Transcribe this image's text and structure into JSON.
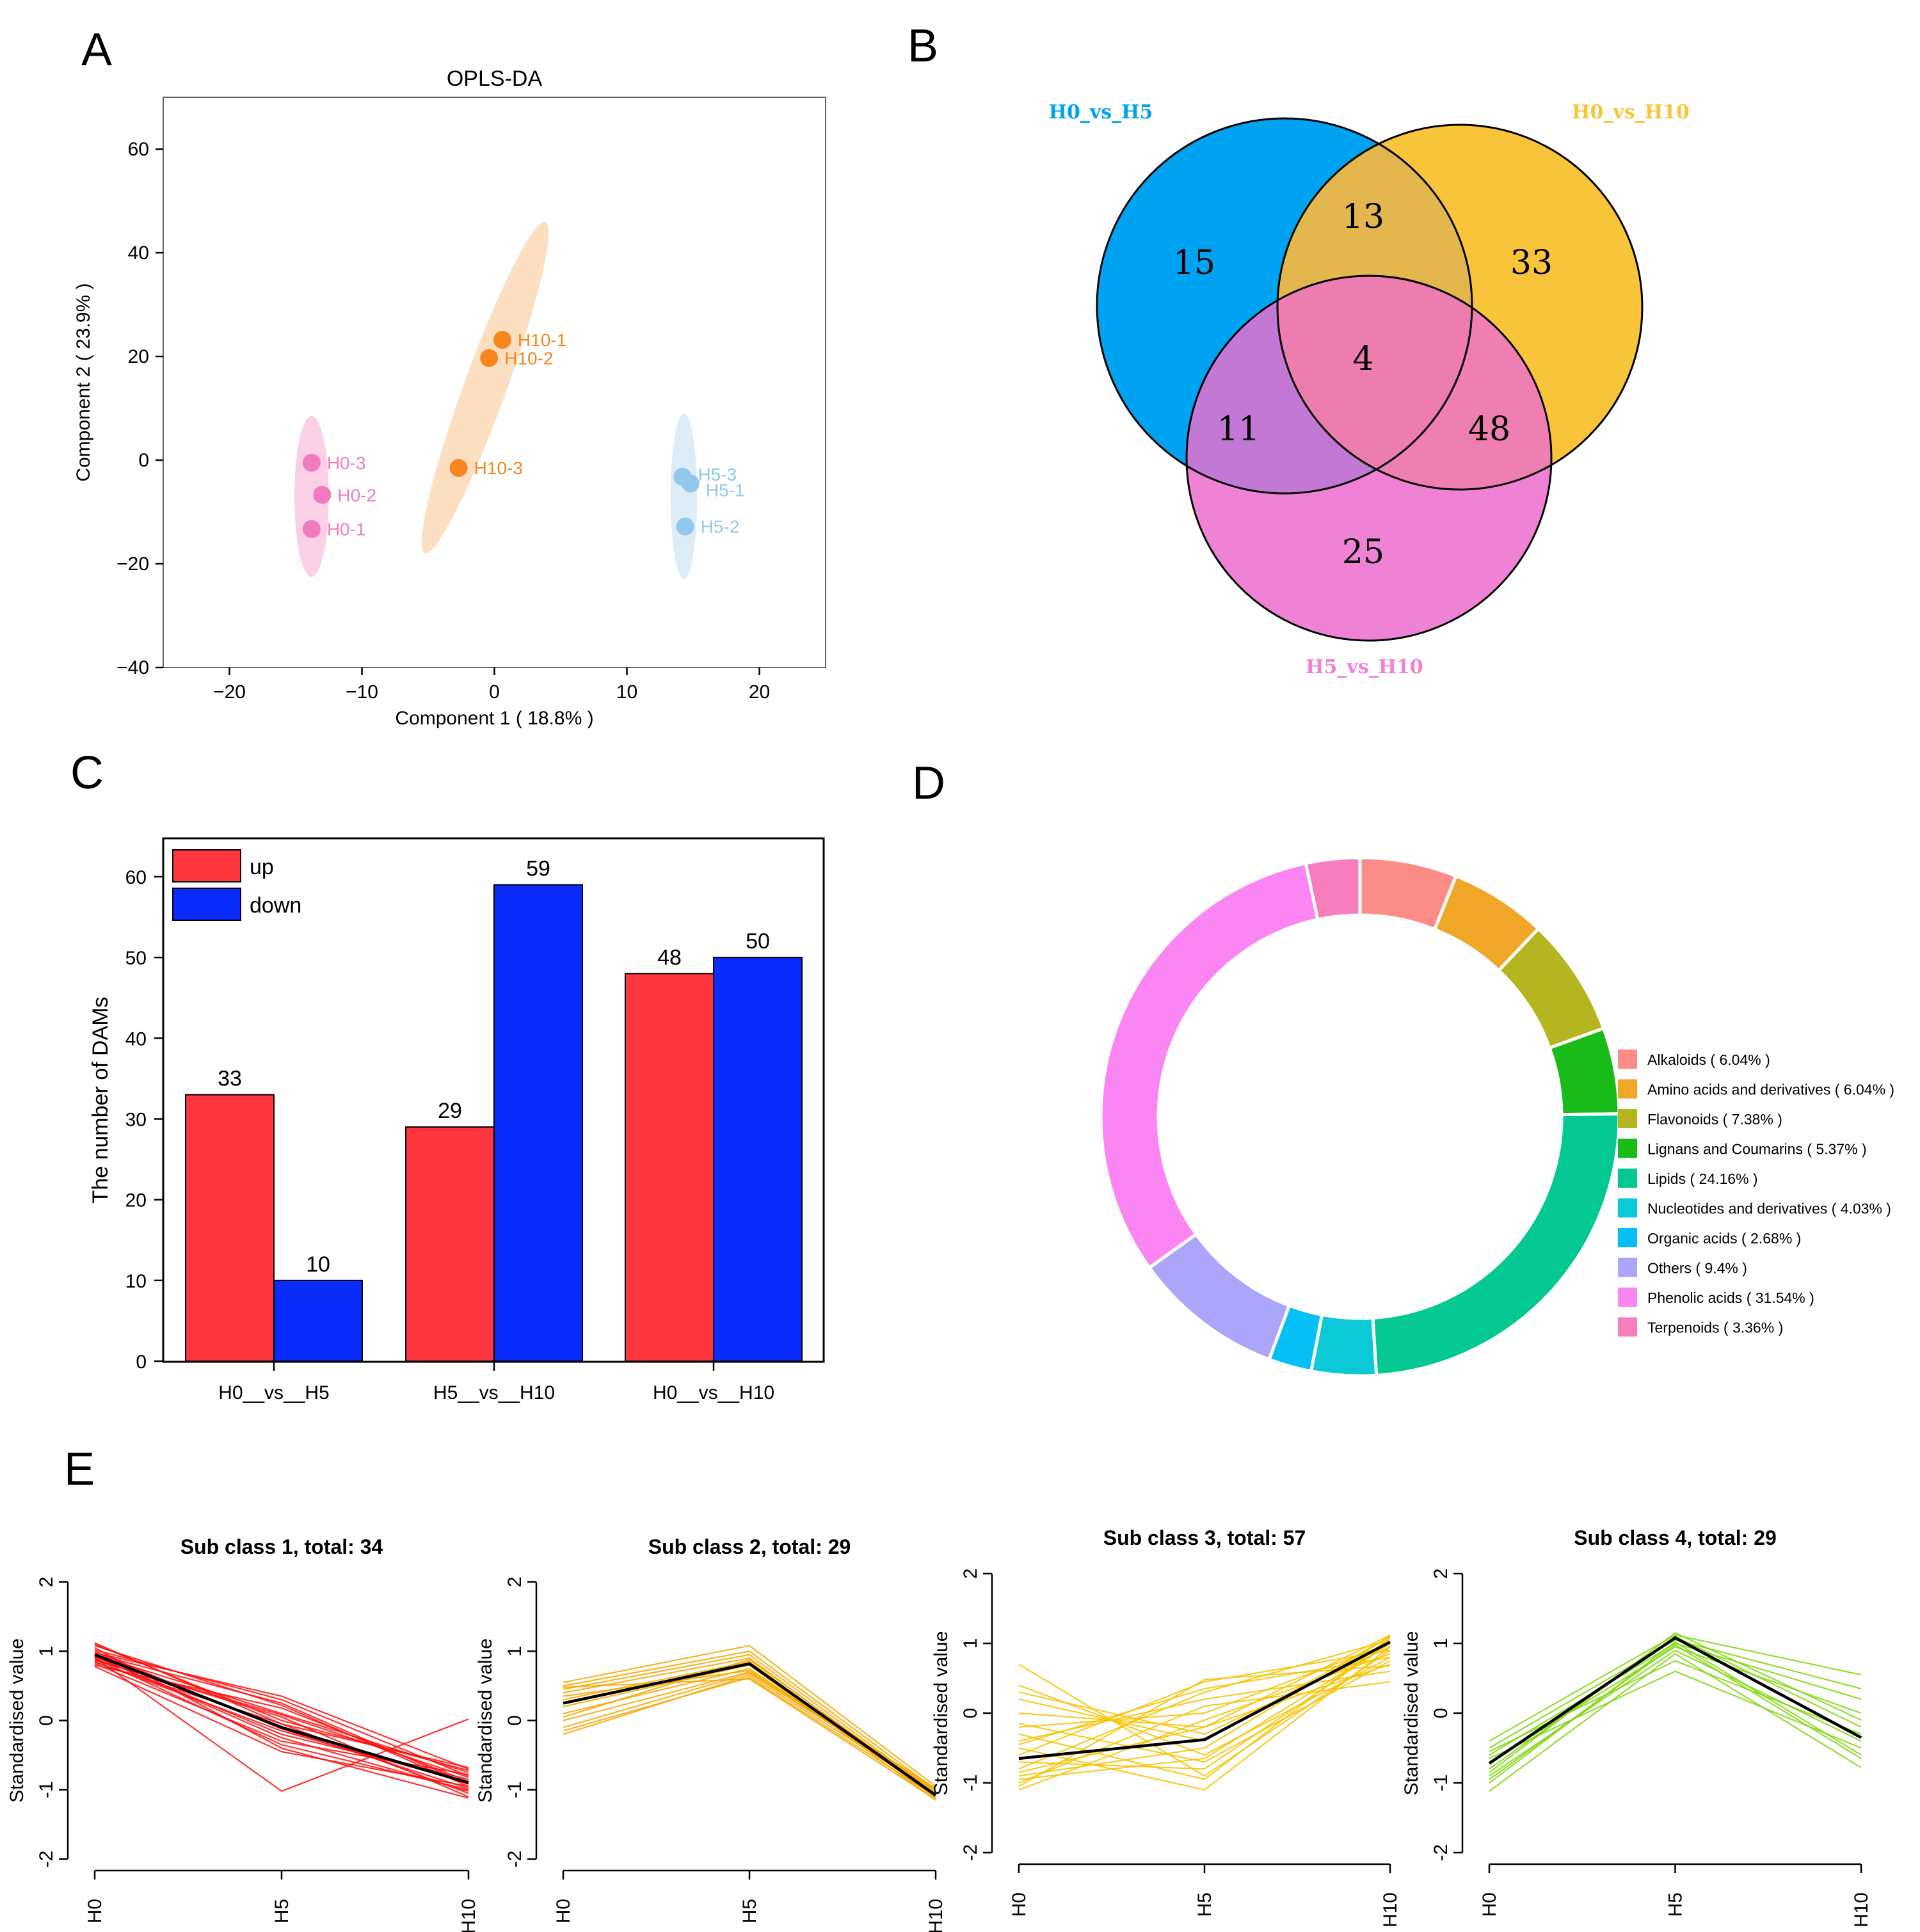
{
  "panels": {
    "a": {
      "letter": "A"
    },
    "b": {
      "letter": "B"
    },
    "c": {
      "letter": "C"
    },
    "d": {
      "letter": "D"
    },
    "e": {
      "letter": "E"
    }
  },
  "chart_data": [
    {
      "id": "A",
      "type": "scatter",
      "title": "OPLS-DA",
      "xlabel": "Component 1 ( 18.8% )",
      "ylabel": "Component 2 ( 23.9% )",
      "xlim": [
        -25,
        25
      ],
      "ylim": [
        -40,
        70
      ],
      "xticks": [
        -20,
        -10,
        0,
        10,
        20
      ],
      "yticks": [
        -40,
        -20,
        0,
        20,
        40,
        60
      ],
      "tick_labels_x": [
        "−20",
        "−10",
        "0",
        "10",
        "20"
      ],
      "tick_labels_y": [
        "−40",
        "−20",
        "0",
        "20",
        "40",
        "60"
      ],
      "groups": [
        {
          "name": "H0",
          "color": "#f07cbf",
          "ellipse_color": "#f8c8e2",
          "ellipse": {
            "cx": -13.8,
            "cy": -7,
            "rx": 1.3,
            "ry": 15.5,
            "angle_deg": 0
          },
          "points": [
            {
              "label": "H0-3",
              "x": -13.8,
              "y": -0.5
            },
            {
              "label": "H0-2",
              "x": -13.0,
              "y": -6.7
            },
            {
              "label": "H0-1",
              "x": -13.8,
              "y": -13.3
            }
          ]
        },
        {
          "name": "H10",
          "color": "#f7861e",
          "ellipse_color": "#fcd9b6",
          "ellipse": {
            "cx": -0.7,
            "cy": 14,
            "rx": 1.6,
            "ry": 34,
            "angle_deg": 20
          },
          "points": [
            {
              "label": "H10-1",
              "x": 0.6,
              "y": 23.2
            },
            {
              "label": "H10-2",
              "x": -0.4,
              "y": 19.7
            },
            {
              "label": "H10-3",
              "x": -2.7,
              "y": -1.5
            }
          ]
        },
        {
          "name": "H5",
          "color": "#92c8ec",
          "ellipse_color": "#d7e9f6",
          "ellipse": {
            "cx": 14.3,
            "cy": -7,
            "rx": 1.0,
            "ry": 16,
            "angle_deg": 0
          },
          "points": [
            {
              "label": "H5-3",
              "x": 14.2,
              "y": -3.2
            },
            {
              "label": "H5-1",
              "x": 14.8,
              "y": -4.5
            },
            {
              "label": "H5-2",
              "x": 14.4,
              "y": -12.8
            }
          ]
        }
      ]
    },
    {
      "id": "B",
      "type": "venn",
      "sets": [
        {
          "name": "H0_vs_H5",
          "color": "#00a2f2"
        },
        {
          "name": "H0_vs_H10",
          "color": "#f8c53a"
        },
        {
          "name": "H5_vs_H10",
          "color": "#f082d6"
        }
      ],
      "regions": {
        "H0_vs_H5_only": 15,
        "H0_vs_H10_only": 33,
        "H5_vs_H10_only": 25,
        "H0_vs_H5_and_H0_vs_H10": 13,
        "H0_vs_H5_and_H5_vs_H10": 11,
        "H0_vs_H10_and_H5_vs_H10": 48,
        "all_three": 4
      },
      "region_colors": {
        "ab": "#e3b74d",
        "ac": "#c478d6",
        "bc": "#ee7fb0",
        "abc": "#ec7dae"
      }
    },
    {
      "id": "C",
      "type": "bar",
      "ylabel": "The number of DAMs",
      "xlabel": "",
      "ylim": [
        0,
        65
      ],
      "yticks": [
        0,
        10,
        20,
        30,
        40,
        50,
        60
      ],
      "categories": [
        "H0__vs__H5",
        "H5__vs__H10",
        "H0__vs__H10"
      ],
      "series": [
        {
          "name": "up",
          "color": "#fe363f",
          "values": [
            33,
            29,
            48
          ]
        },
        {
          "name": "down",
          "color": "#0a2cfb",
          "values": [
            10,
            59,
            50
          ]
        }
      ],
      "legend": "top-left"
    },
    {
      "id": "D",
      "type": "pie",
      "style": "donut",
      "legend": "right",
      "slices": [
        {
          "label": "Alkaloids ( 6.04% )",
          "value": 6.04,
          "color": "#fc8d86"
        },
        {
          "label": "Amino acids and derivatives ( 6.04% )",
          "value": 6.04,
          "color": "#f0a626"
        },
        {
          "label": "Flavonoids ( 7.38% )",
          "value": 7.38,
          "color": "#b4b51f"
        },
        {
          "label": "Lignans and Coumarins ( 5.37% )",
          "value": 5.37,
          "color": "#18bb18"
        },
        {
          "label": "Lipids ( 24.16% )",
          "value": 24.16,
          "color": "#04c892"
        },
        {
          "label": "Nucleotides and derivatives ( 4.03% )",
          "value": 4.03,
          "color": "#0bc9d6"
        },
        {
          "label": "Organic acids ( 2.68% )",
          "value": 2.68,
          "color": "#06bff6"
        },
        {
          "label": "Others ( 9.4% )",
          "value": 9.4,
          "color": "#aca6fb"
        },
        {
          "label": "Phenolic acids ( 31.54% )",
          "value": 31.54,
          "color": "#fb86f3"
        },
        {
          "label": "Terpenoids ( 3.36% )",
          "value": 3.36,
          "color": "#f77dbd"
        }
      ]
    },
    {
      "id": "E",
      "type": "line",
      "ylabel": "Standardised value",
      "x": [
        "H0",
        "H5",
        "H10"
      ],
      "ylim": [
        -2,
        2
      ],
      "yticks": [
        -2,
        -1,
        0,
        1,
        2
      ],
      "subplots": [
        {
          "title": "Sub class 1, total: 34",
          "color": "#ff1111",
          "mean": [
            0.95,
            -0.1,
            -0.9
          ],
          "lines": [
            [
              1.12,
              -0.05,
              -1.05
            ],
            [
              1.08,
              0.22,
              -0.95
            ],
            [
              1.02,
              0.3,
              -0.8
            ],
            [
              0.98,
              0.35,
              -0.7
            ],
            [
              0.95,
              0.1,
              -0.75
            ],
            [
              0.92,
              -0.2,
              -0.85
            ],
            [
              0.9,
              -0.35,
              -1.0
            ],
            [
              0.88,
              0.05,
              -1.1
            ],
            [
              0.85,
              -0.15,
              -0.9
            ],
            [
              0.82,
              -0.3,
              -0.78
            ],
            [
              0.8,
              0.18,
              -0.88
            ],
            [
              0.78,
              -0.45,
              -0.95
            ],
            [
              1.05,
              -0.4,
              -1.12
            ],
            [
              1.1,
              0.0,
              -0.72
            ],
            [
              0.96,
              0.25,
              -0.92
            ],
            [
              0.93,
              -0.25,
              -1.02
            ],
            [
              0.87,
              0.08,
              -0.82
            ],
            [
              0.91,
              -1.02,
              0.02
            ],
            [
              1.0,
              -0.12,
              -0.98
            ],
            [
              0.84,
              -0.05,
              -0.68
            ]
          ]
        },
        {
          "title": "Sub class 2, total: 29",
          "color": "#f7a800",
          "mean": [
            0.25,
            0.82,
            -1.08
          ],
          "lines": [
            [
              0.55,
              1.08,
              -0.95
            ],
            [
              0.5,
              1.0,
              -1.0
            ],
            [
              0.45,
              0.95,
              -1.05
            ],
            [
              0.4,
              0.9,
              -1.1
            ],
            [
              0.3,
              0.85,
              -1.12
            ],
            [
              0.2,
              0.8,
              -1.15
            ],
            [
              0.1,
              0.75,
              -1.08
            ],
            [
              0.0,
              0.7,
              -1.02
            ],
            [
              -0.1,
              0.68,
              -1.0
            ],
            [
              -0.2,
              0.65,
              -1.05
            ],
            [
              -0.15,
              0.62,
              -1.1
            ],
            [
              0.35,
              0.72,
              -0.98
            ],
            [
              0.48,
              0.6,
              -1.14
            ],
            [
              0.05,
              0.88,
              -1.06
            ]
          ]
        },
        {
          "title": "Sub class 3, total: 57",
          "color": "#f7c300",
          "mean": [
            -0.65,
            -0.38,
            1.02
          ],
          "lines": [
            [
              0.7,
              -0.9,
              0.9
            ],
            [
              0.4,
              -0.6,
              0.8
            ],
            [
              0.2,
              -0.4,
              1.1
            ],
            [
              0.0,
              -0.2,
              0.7
            ],
            [
              -0.2,
              0.0,
              1.0
            ],
            [
              -0.4,
              0.2,
              0.6
            ],
            [
              -0.6,
              0.45,
              0.9
            ],
            [
              -0.8,
              0.3,
              1.05
            ],
            [
              -1.0,
              0.1,
              0.45
            ],
            [
              -1.1,
              -0.1,
              0.85
            ],
            [
              -0.9,
              -0.5,
              1.1
            ],
            [
              -0.7,
              -0.8,
              1.0
            ],
            [
              -0.5,
              -1.1,
              0.95
            ],
            [
              -0.3,
              -0.95,
              1.08
            ],
            [
              -1.05,
              0.48,
              0.68
            ],
            [
              -0.15,
              -0.7,
              0.75
            ],
            [
              0.3,
              -0.3,
              0.95
            ],
            [
              -0.85,
              -0.2,
              1.12
            ],
            [
              -0.45,
              0.35,
              0.8
            ],
            [
              -0.95,
              -0.65,
              1.0
            ]
          ]
        },
        {
          "title": "Sub class 4, total: 29",
          "color": "#7fd80e",
          "mean": [
            -0.72,
            1.08,
            -0.35
          ],
          "lines": [
            [
              -0.4,
              1.12,
              0.55
            ],
            [
              -0.5,
              1.05,
              0.35
            ],
            [
              -0.6,
              1.0,
              0.2
            ],
            [
              -0.7,
              0.95,
              0.0
            ],
            [
              -0.8,
              1.1,
              -0.2
            ],
            [
              -0.9,
              0.9,
              -0.4
            ],
            [
              -1.0,
              1.02,
              -0.6
            ],
            [
              -1.12,
              0.85,
              -0.78
            ],
            [
              -0.55,
              0.75,
              -0.3
            ],
            [
              -0.65,
              0.6,
              -0.5
            ],
            [
              -0.85,
              1.15,
              -0.1
            ],
            [
              -0.95,
              0.98,
              -0.65
            ]
          ]
        }
      ]
    }
  ]
}
